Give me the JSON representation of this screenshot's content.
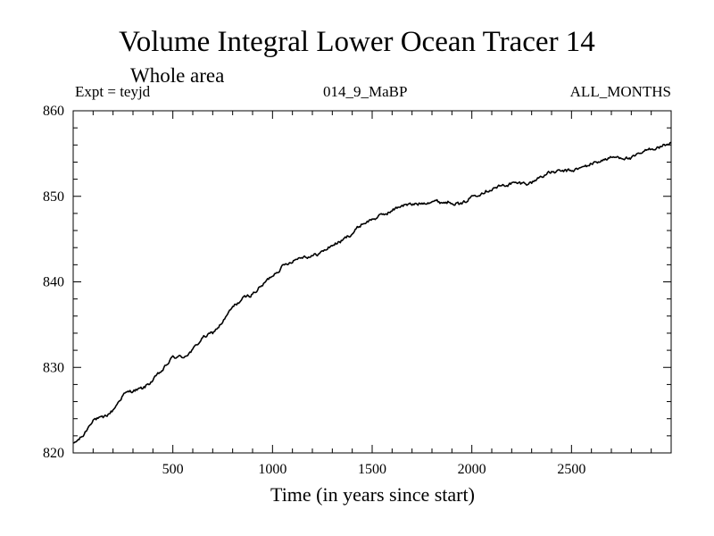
{
  "chart_data": {
    "type": "line",
    "title": "Volume Integral Lower Ocean Tracer 14",
    "subtitle": "Whole area",
    "expt_label": "Expt = teyjd",
    "run_label": "014_9_MaBP",
    "months_label": "ALL_MONTHS",
    "xlabel": "Time (in years since start)",
    "ylabel": "",
    "xlim": [
      0,
      3000
    ],
    "ylim": [
      820,
      860
    ],
    "xticks": [
      500,
      1000,
      1500,
      2000,
      2500
    ],
    "yticks": [
      820,
      830,
      840,
      850,
      860
    ],
    "grid": false,
    "series": [
      {
        "name": "Volume Integral Lower Ocean Tracer 14",
        "color": "#000000",
        "x": [
          0,
          50,
          100,
          150,
          200,
          250,
          300,
          350,
          400,
          450,
          500,
          550,
          600,
          650,
          700,
          750,
          800,
          850,
          900,
          950,
          1000,
          1050,
          1100,
          1150,
          1200,
          1250,
          1300,
          1350,
          1400,
          1450,
          1500,
          1550,
          1600,
          1650,
          1700,
          1750,
          1800,
          1850,
          1900,
          1950,
          2000,
          2050,
          2100,
          2150,
          2200,
          2250,
          2300,
          2350,
          2400,
          2450,
          2500,
          2550,
          2600,
          2650,
          2700,
          2750,
          2800,
          2850,
          2900,
          2950,
          3000
        ],
        "y": [
          821.0,
          822.0,
          824.0,
          824.0,
          825.0,
          826.8,
          827.3,
          827.5,
          828.5,
          829.7,
          831.2,
          831.2,
          832.0,
          833.5,
          834.0,
          835.3,
          837.0,
          838.0,
          838.6,
          839.6,
          840.8,
          841.8,
          842.5,
          843.0,
          843.0,
          843.5,
          844.3,
          844.8,
          845.7,
          846.8,
          847.3,
          847.8,
          848.3,
          849.0,
          849.0,
          849.2,
          849.5,
          849.3,
          849.4,
          849.0,
          850.0,
          850.5,
          850.9,
          851.2,
          851.5,
          851.5,
          851.6,
          852.4,
          852.8,
          852.9,
          853.0,
          853.3,
          853.8,
          854.2,
          854.5,
          854.6,
          854.4,
          855.0,
          855.6,
          855.8,
          856.3
        ]
      }
    ]
  }
}
